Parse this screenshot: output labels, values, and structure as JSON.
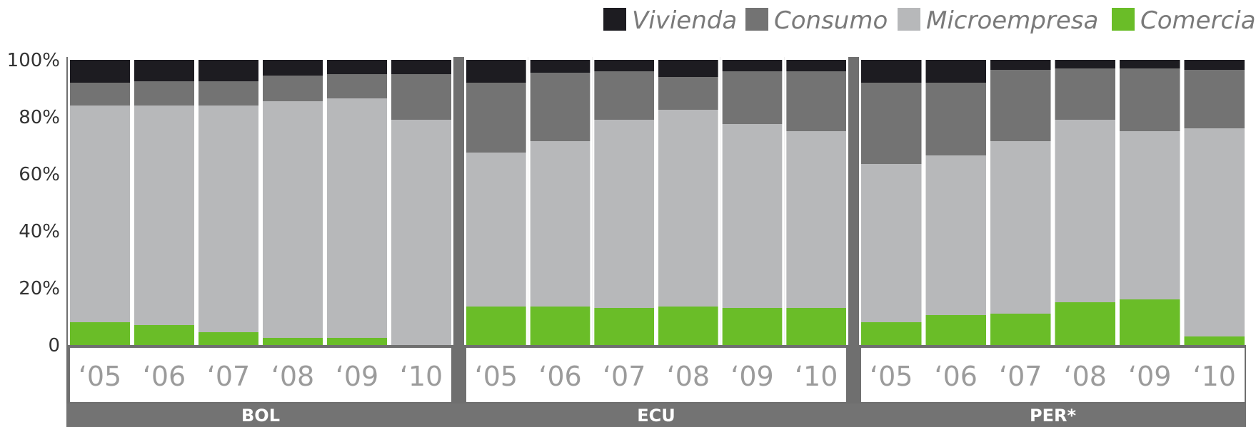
{
  "chart_data": {
    "type": "bar",
    "stacked": true,
    "normalized": true,
    "yticks": [
      "0",
      "20%",
      "40%",
      "60%",
      "80%",
      "100%"
    ],
    "ylim": [
      0,
      100
    ],
    "legend_position": "top-right",
    "stack_order": [
      "Comercial",
      "Microempresa",
      "Consumo",
      "Vivienda"
    ],
    "legend": [
      {
        "name": "Vivienda",
        "color": "#1d1c21"
      },
      {
        "name": "Consumo",
        "color": "#737373"
      },
      {
        "name": "Microempresa",
        "color": "#b7b8ba"
      },
      {
        "name": "Comercial",
        "color": "#6abd28"
      }
    ],
    "groups": [
      {
        "name": "BOL",
        "categories": [
          "‘05",
          "‘06",
          "‘07",
          "‘08",
          "‘09",
          "‘10"
        ],
        "series": [
          {
            "name": "Comercial",
            "values": [
              8,
              7,
              4.5,
              2.5,
              2.5,
              0
            ]
          },
          {
            "name": "Microempresa",
            "values": [
              76,
              77,
              79.5,
              83,
              84,
              79
            ]
          },
          {
            "name": "Consumo",
            "values": [
              8,
              8.5,
              8.5,
              9,
              8.5,
              16
            ]
          },
          {
            "name": "Vivienda",
            "values": [
              8,
              7.5,
              7.5,
              5.5,
              5,
              5
            ]
          }
        ]
      },
      {
        "name": "ECU",
        "categories": [
          "‘05",
          "‘06",
          "‘07",
          "‘08",
          "‘09",
          "‘10"
        ],
        "series": [
          {
            "name": "Comercial",
            "values": [
              13.5,
              13.5,
              13,
              13.5,
              13,
              13
            ]
          },
          {
            "name": "Microempresa",
            "values": [
              54,
              58,
              66,
              69,
              64.5,
              62
            ]
          },
          {
            "name": "Consumo",
            "values": [
              24.5,
              24,
              17,
              11.5,
              18.5,
              21
            ]
          },
          {
            "name": "Vivienda",
            "values": [
              8,
              4.5,
              4,
              6,
              4,
              4
            ]
          }
        ]
      },
      {
        "name": "PER*",
        "categories": [
          "‘05",
          "‘06",
          "‘07",
          "‘08",
          "‘09",
          "‘10"
        ],
        "series": [
          {
            "name": "Comercial",
            "values": [
              8,
              10.5,
              11,
              15,
              16,
              3
            ]
          },
          {
            "name": "Microempresa",
            "values": [
              55.5,
              56,
              60.5,
              64,
              59,
              73
            ]
          },
          {
            "name": "Consumo",
            "values": [
              28.5,
              25.5,
              25,
              18,
              22,
              20.5
            ]
          },
          {
            "name": "Vivienda",
            "values": [
              8,
              8,
              3.5,
              3,
              3,
              3.5
            ]
          }
        ]
      }
    ]
  }
}
